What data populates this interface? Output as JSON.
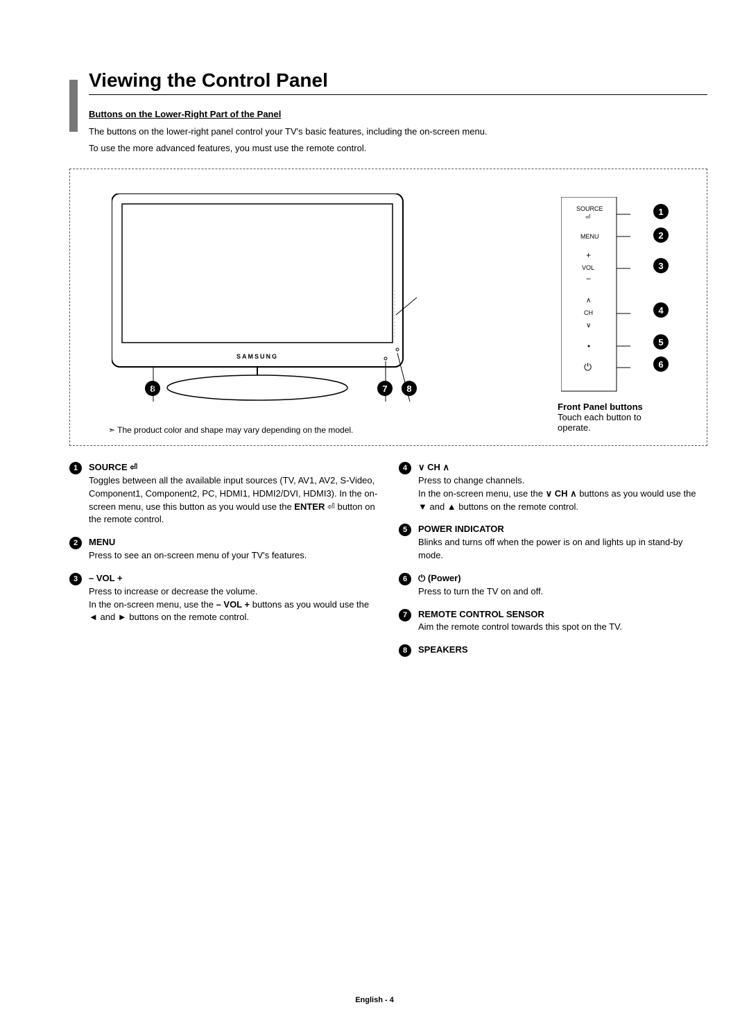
{
  "title": "Viewing the Control Panel",
  "subtitle": "Buttons on the Lower-Right Part of the Panel",
  "intro_line1": "The buttons on the lower-right panel control your TV's basic features, including the on-screen menu.",
  "intro_line2": "To use the more advanced features, you must use the remote control.",
  "diagram": {
    "brand": "SAMSUNG",
    "panel_labels": {
      "source": "SOURCE",
      "menu": "MENU",
      "vol": "VOL",
      "ch": "CH"
    },
    "front_panel_title": "Front Panel buttons",
    "front_panel_desc": "Touch each button to operate.",
    "note": "The product color and shape may vary depending on the model.",
    "callouts": [
      "1",
      "2",
      "3",
      "4",
      "5",
      "6",
      "7",
      "8"
    ]
  },
  "left_items": [
    {
      "num": "1",
      "title": "SOURCE ⏎",
      "body": "Toggles between all the available input sources (TV, AV1, AV2, S-Video, Component1, Component2, PC, HDMI1, HDMI2/DVI, HDMI3). In the on-screen menu, use this button as you would use the ENTER ⏎ button on the remote control."
    },
    {
      "num": "2",
      "title": "MENU",
      "body": "Press to see an on-screen menu of your TV's features."
    },
    {
      "num": "3",
      "title": "– VOL +",
      "body": "Press to increase or decrease the volume.\nIn the on-screen menu, use the – VOL + buttons as you would use the ◄ and ► buttons on the remote control."
    }
  ],
  "right_items": [
    {
      "num": "4",
      "title": "∨ CH ∧",
      "body": "Press to change channels.\nIn the on-screen menu, use the ∨ CH ∧ buttons as you would use the ▼ and ▲ buttons on the remote control."
    },
    {
      "num": "5",
      "title": "POWER INDICATOR",
      "body": "Blinks and turns off when the power is on and lights up in stand-by mode."
    },
    {
      "num": "6",
      "title": "⏻ (Power)",
      "body": "Press to turn the TV on and off."
    },
    {
      "num": "7",
      "title": "REMOTE CONTROL SENSOR",
      "body": "Aim the remote control towards this spot on the TV."
    },
    {
      "num": "8",
      "title": "SPEAKERS",
      "body": ""
    }
  ],
  "footer": "English - 4",
  "colors": {
    "sidebar": "#777777",
    "black": "#000000",
    "dash": "#555555"
  }
}
